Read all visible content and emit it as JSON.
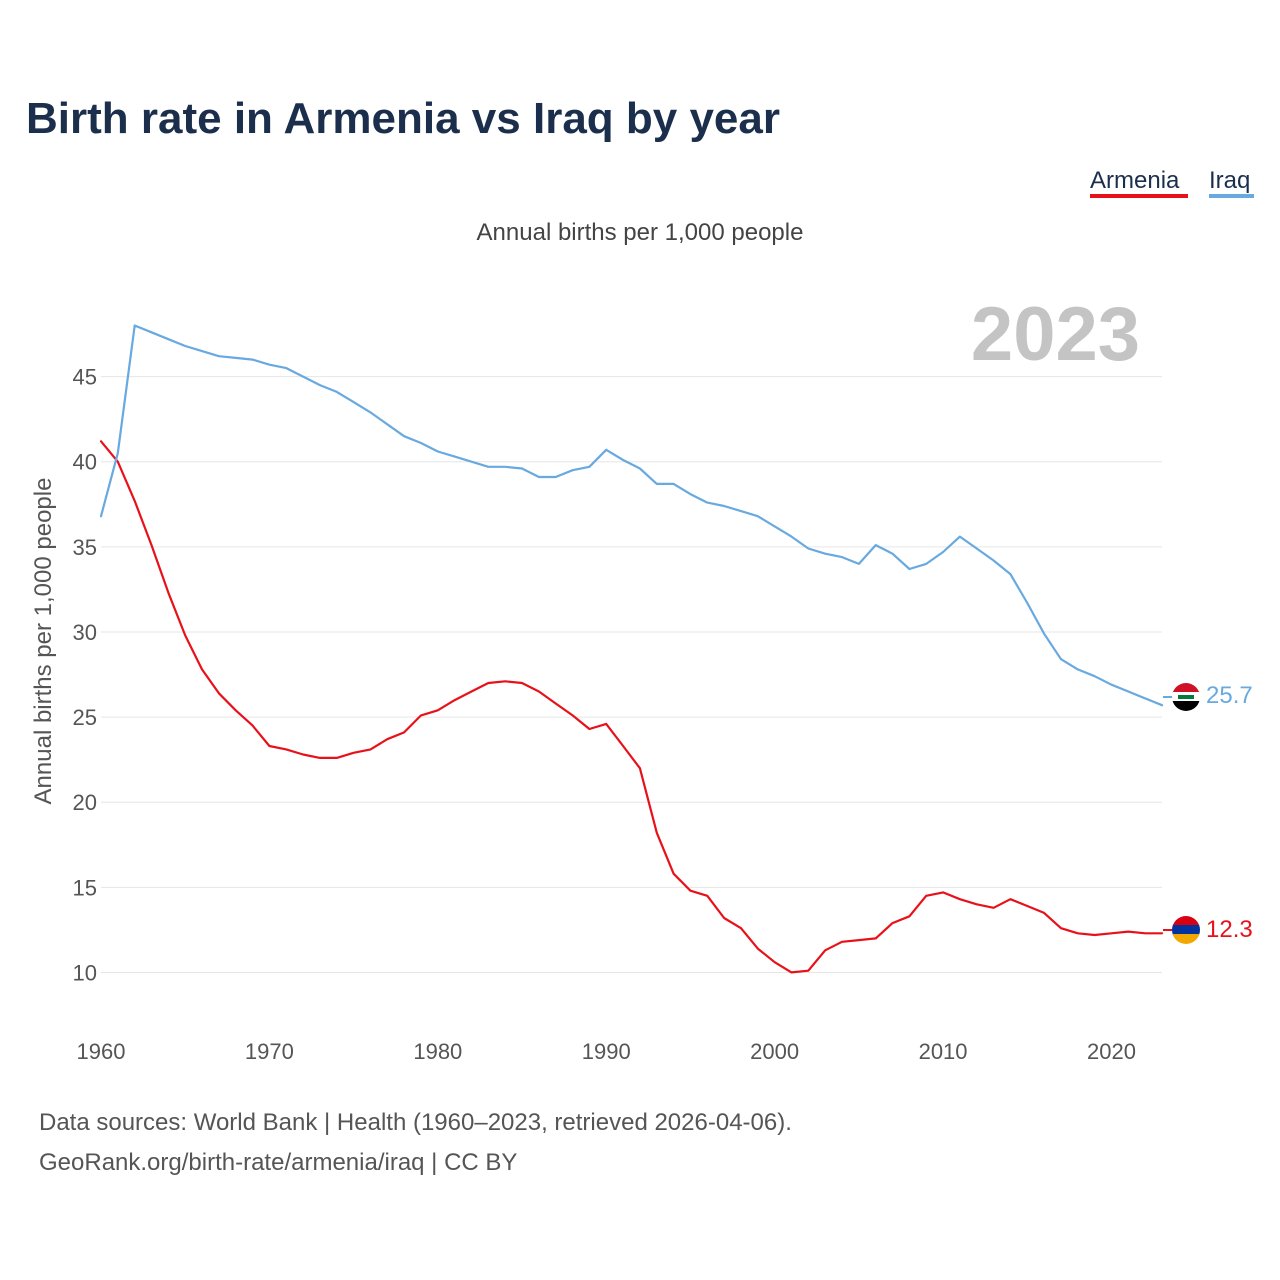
{
  "chart_data": {
    "type": "line",
    "title": "Birth rate in Armenia vs Iraq by year",
    "subtitle": "Annual births per 1,000 people",
    "ylabel": "Annual births per 1,000 people",
    "xlabel": "",
    "year_label": "2023",
    "xlim": [
      1960,
      2023
    ],
    "ylim": [
      7.5,
      49.5
    ],
    "x_ticks": [
      1960,
      1970,
      1980,
      1990,
      2000,
      2010,
      2020
    ],
    "y_ticks": [
      10,
      15,
      20,
      25,
      30,
      35,
      40,
      45
    ],
    "legend": [
      "Armenia",
      "Iraq"
    ],
    "legend_position": "top-right",
    "series": [
      {
        "name": "Armenia",
        "color": "#e8111a",
        "end_label": "12.3",
        "x": [
          1960,
          1961,
          1962,
          1963,
          1964,
          1965,
          1966,
          1967,
          1968,
          1969,
          1970,
          1971,
          1972,
          1973,
          1974,
          1975,
          1976,
          1977,
          1978,
          1979,
          1980,
          1981,
          1982,
          1983,
          1984,
          1985,
          1986,
          1987,
          1988,
          1989,
          1990,
          1991,
          1992,
          1993,
          1994,
          1995,
          1996,
          1997,
          1998,
          1999,
          2000,
          2001,
          2002,
          2003,
          2004,
          2005,
          2006,
          2007,
          2008,
          2009,
          2010,
          2011,
          2012,
          2013,
          2014,
          2015,
          2016,
          2017,
          2018,
          2019,
          2020,
          2021,
          2022,
          2023
        ],
        "values": [
          41.2,
          40.0,
          37.7,
          35.1,
          32.3,
          29.8,
          27.8,
          26.4,
          25.4,
          24.5,
          23.3,
          23.1,
          22.8,
          22.6,
          22.6,
          22.9,
          23.1,
          23.7,
          24.1,
          25.1,
          25.4,
          26.0,
          26.5,
          27.0,
          27.1,
          27.0,
          26.5,
          25.8,
          25.1,
          24.3,
          24.6,
          23.3,
          22.0,
          18.2,
          15.8,
          14.8,
          14.5,
          13.2,
          12.6,
          11.4,
          10.6,
          10.0,
          10.1,
          11.3,
          11.8,
          11.9,
          12.0,
          12.9,
          13.3,
          14.5,
          14.7,
          14.3,
          14.0,
          13.8,
          14.3,
          13.9,
          13.5,
          12.6,
          12.3,
          12.2,
          12.3,
          12.4,
          12.3,
          12.3
        ]
      },
      {
        "name": "Iraq",
        "color": "#68a9e0",
        "end_label": "25.7",
        "x": [
          1960,
          1961,
          1962,
          1963,
          1964,
          1965,
          1966,
          1967,
          1968,
          1969,
          1970,
          1971,
          1972,
          1973,
          1974,
          1975,
          1976,
          1977,
          1978,
          1979,
          1980,
          1981,
          1982,
          1983,
          1984,
          1985,
          1986,
          1987,
          1988,
          1989,
          1990,
          1991,
          1992,
          1993,
          1994,
          1995,
          1996,
          1997,
          1998,
          1999,
          2000,
          2001,
          2002,
          2003,
          2004,
          2005,
          2006,
          2007,
          2008,
          2009,
          2010,
          2011,
          2012,
          2013,
          2014,
          2015,
          2016,
          2017,
          2018,
          2019,
          2020,
          2021,
          2022,
          2023
        ],
        "values": [
          36.8,
          40.5,
          48.0,
          47.6,
          47.2,
          46.8,
          46.5,
          46.2,
          46.1,
          46.0,
          45.7,
          45.5,
          45.0,
          44.5,
          44.1,
          43.5,
          42.9,
          42.2,
          41.5,
          41.1,
          40.6,
          40.3,
          40.0,
          39.7,
          39.7,
          39.6,
          39.1,
          39.1,
          39.5,
          39.7,
          40.7,
          40.1,
          39.6,
          38.7,
          38.7,
          38.1,
          37.6,
          37.4,
          37.1,
          36.8,
          36.2,
          35.6,
          34.9,
          34.6,
          34.4,
          34.0,
          35.1,
          34.6,
          33.7,
          34.0,
          34.7,
          35.6,
          34.9,
          34.2,
          33.4,
          31.7,
          29.9,
          28.4,
          27.8,
          27.4,
          26.9,
          26.5,
          26.1,
          25.7
        ]
      }
    ]
  },
  "source": {
    "line1": "Data sources: World Bank | Health (1960–2023, retrieved 2026-04-06).",
    "line2": "GeoRank.org/birth-rate/armenia/iraq | CC BY"
  }
}
